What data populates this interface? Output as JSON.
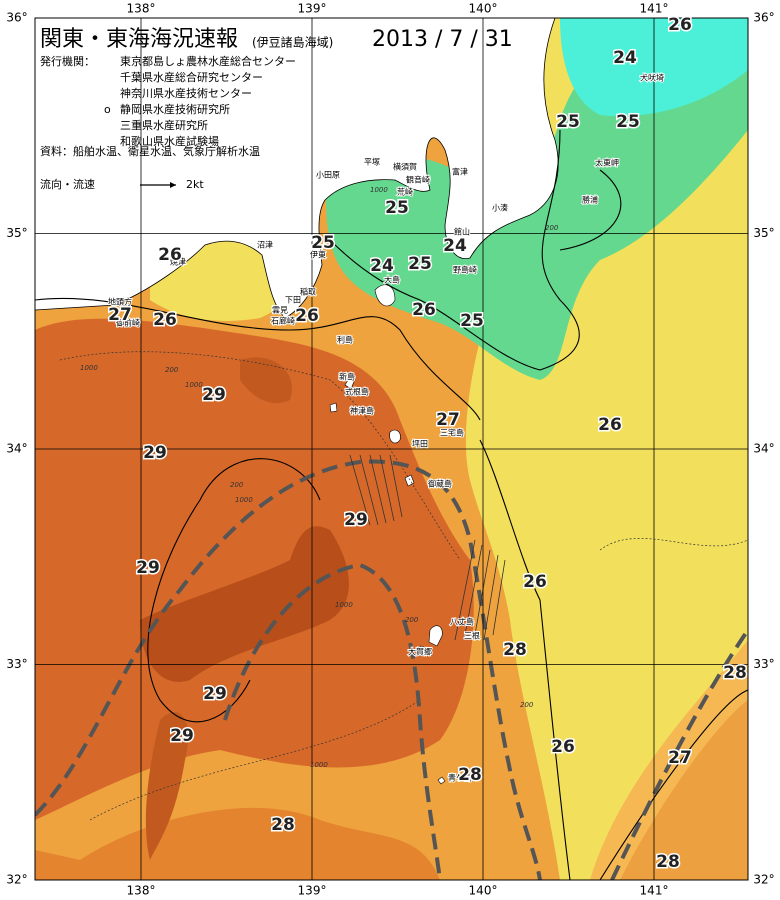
{
  "title": "関東・東海海況速報",
  "subtitle": "(伊豆諸島海域)",
  "date": "2013 / 7 / 31",
  "issuers": {
    "label": "発行機関：",
    "marker": "o",
    "list": [
      "東京都島しょ農林水産総合センター",
      "千葉県水産総合研究センター",
      "神奈川県水産技術センター",
      "静岡県水産技術研究所",
      "三重県水産研究所",
      "和歌山県水産試験場"
    ]
  },
  "sources": "資料：船舶水温、衛星水温、気象庁解析水温",
  "flow_legend": {
    "label": "流向・流速",
    "scale": "2kt"
  },
  "longitude_ticks": [
    {
      "value": 138,
      "label": "138°"
    },
    {
      "value": 139,
      "label": "139°"
    },
    {
      "value": 140,
      "label": "140°"
    },
    {
      "value": 141,
      "label": "141°"
    }
  ],
  "latitude_ticks": [
    {
      "value": 36,
      "label": "36°"
    },
    {
      "value": 35,
      "label": "35°"
    },
    {
      "value": 34,
      "label": "34°"
    },
    {
      "value": 33,
      "label": "33°"
    },
    {
      "value": 32,
      "label": "32°"
    }
  ],
  "place_names": [
    "犬吠埼",
    "太東岬",
    "勝浦",
    "小湊",
    "館山",
    "野島崎",
    "富津",
    "観音崎",
    "横須賀",
    "荒崎",
    "平塚",
    "小田原",
    "伊東",
    "沼津",
    "焼津",
    "稲取",
    "下田",
    "雲見",
    "石廊崎",
    "地頭方",
    "御前崎",
    "大島",
    "利島",
    "新島",
    "式根島",
    "神津島",
    "三宅島",
    "坪田",
    "御蔵島",
    "八丈島",
    "三根",
    "大賀郷",
    "青ケ島"
  ],
  "temperature_labels": [
    26,
    24,
    25,
    25,
    25,
    25,
    24,
    24,
    25,
    26,
    27,
    26,
    26,
    26,
    25,
    29,
    27,
    26,
    29,
    29,
    29,
    26,
    28,
    28,
    29,
    29,
    26,
    27,
    28,
    28,
    28
  ],
  "depth_labels": [
    "1000",
    "200",
    "1000",
    "200",
    "1000",
    "200",
    "1000",
    "1000",
    "200",
    "1000",
    "200"
  ]
}
